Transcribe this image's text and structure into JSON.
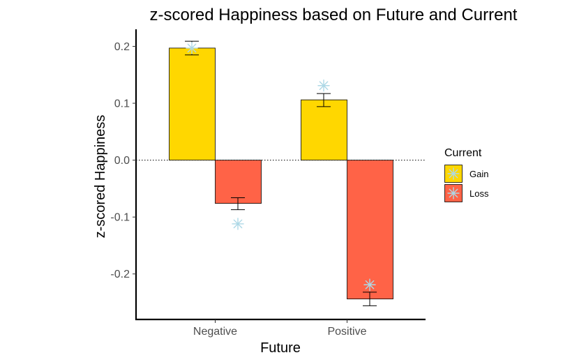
{
  "chart_data": {
    "type": "bar",
    "title": "z-scored Happiness based on Future and Current",
    "xlabel": "Future",
    "ylabel": "z-scored Happiness",
    "categories": [
      "Negative",
      "Positive"
    ],
    "ylim": [
      -0.28,
      0.23
    ],
    "yticks": [
      0.2,
      0.1,
      0.0,
      -0.1,
      -0.2
    ],
    "ytick_labels": [
      "0.2",
      "0.1",
      "0.0",
      "-0.1",
      "-0.2"
    ],
    "grid": false,
    "zero_line": "dotted",
    "legend": {
      "title": "Current",
      "placement": "right",
      "entries": [
        "Gain",
        "Loss"
      ]
    },
    "series": [
      {
        "name": "Gain",
        "color": "#FFD700",
        "values": [
          0.197,
          0.106
        ],
        "error_low": [
          0.185,
          0.094
        ],
        "error_high": [
          0.209,
          0.117
        ],
        "star_values": [
          0.197,
          0.131
        ],
        "star_color": "#ADD8E6"
      },
      {
        "name": "Loss",
        "color": "#FF6347",
        "values": [
          -0.076,
          -0.244
        ],
        "error_low": [
          -0.087,
          -0.256
        ],
        "error_high": [
          -0.066,
          -0.232
        ],
        "star_values": [
          -0.112,
          -0.219
        ],
        "star_color": "#ADD8E6"
      }
    ]
  }
}
